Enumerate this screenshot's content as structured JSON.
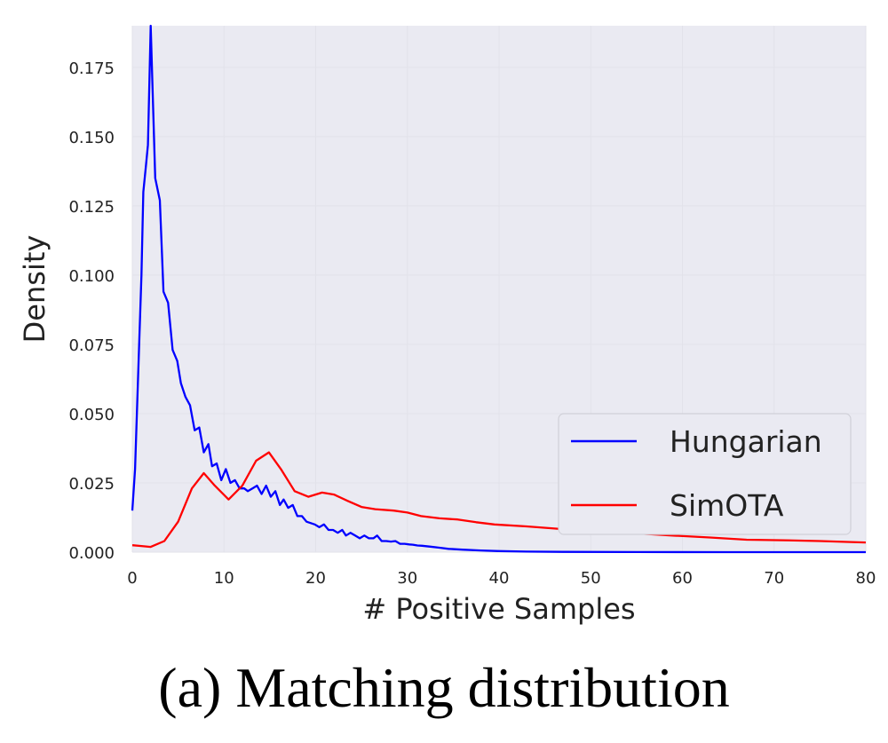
{
  "caption": "(a) Matching distribution",
  "chart_data": {
    "type": "line",
    "xlabel": "# Positive Samples",
    "ylabel": "Density",
    "xlim": [
      0,
      80
    ],
    "ylim": [
      0,
      0.19
    ],
    "xticks": [
      0,
      10,
      20,
      30,
      40,
      50,
      60,
      70,
      80
    ],
    "yticks": [
      0.0,
      0.025,
      0.05,
      0.075,
      0.1,
      0.125,
      0.15,
      0.175
    ],
    "ytick_labels": [
      "0.000",
      "0.025",
      "0.050",
      "0.075",
      "0.100",
      "0.125",
      "0.150",
      "0.175"
    ],
    "grid": true,
    "legend_position": "lower-right",
    "background": "#eaeaf2",
    "series": [
      {
        "name": "Hungarian",
        "color": "#0000ff",
        "points": [
          [
            0,
            0.015
          ],
          [
            0.3,
            0.03
          ],
          [
            0.7,
            0.07
          ],
          [
            1.0,
            0.1
          ],
          [
            1.2,
            0.13
          ],
          [
            1.5,
            0.14
          ],
          [
            1.7,
            0.147
          ],
          [
            2.0,
            0.19
          ],
          [
            2.5,
            0.135
          ],
          [
            3.0,
            0.127
          ],
          [
            3.4,
            0.094
          ],
          [
            3.9,
            0.09
          ],
          [
            4.4,
            0.073
          ],
          [
            4.9,
            0.069
          ],
          [
            5.3,
            0.061
          ],
          [
            5.8,
            0.056
          ],
          [
            6.3,
            0.053
          ],
          [
            6.8,
            0.044
          ],
          [
            7.3,
            0.045
          ],
          [
            7.8,
            0.036
          ],
          [
            8.3,
            0.039
          ],
          [
            8.7,
            0.031
          ],
          [
            9.2,
            0.032
          ],
          [
            9.7,
            0.026
          ],
          [
            10.2,
            0.03
          ],
          [
            10.7,
            0.025
          ],
          [
            11.2,
            0.026
          ],
          [
            11.7,
            0.023
          ],
          [
            12.2,
            0.023
          ],
          [
            12.6,
            0.022
          ],
          [
            13.1,
            0.023
          ],
          [
            13.6,
            0.024
          ],
          [
            14.1,
            0.021
          ],
          [
            14.6,
            0.024
          ],
          [
            15.1,
            0.02
          ],
          [
            15.6,
            0.022
          ],
          [
            16.1,
            0.017
          ],
          [
            16.5,
            0.019
          ],
          [
            17.0,
            0.016
          ],
          [
            17.5,
            0.017
          ],
          [
            18.0,
            0.013
          ],
          [
            18.5,
            0.013
          ],
          [
            19.0,
            0.011
          ],
          [
            19.9,
            0.01
          ],
          [
            20.4,
            0.009
          ],
          [
            20.9,
            0.01
          ],
          [
            21.4,
            0.008
          ],
          [
            21.9,
            0.008
          ],
          [
            22.4,
            0.007
          ],
          [
            22.9,
            0.008
          ],
          [
            23.3,
            0.006
          ],
          [
            23.8,
            0.007
          ],
          [
            24.3,
            0.006
          ],
          [
            24.8,
            0.005
          ],
          [
            25.3,
            0.006
          ],
          [
            25.8,
            0.005
          ],
          [
            26.3,
            0.005
          ],
          [
            26.7,
            0.006
          ],
          [
            27.2,
            0.004
          ],
          [
            27.7,
            0.004
          ],
          [
            28.2,
            0.0038
          ],
          [
            28.7,
            0.004
          ],
          [
            29.2,
            0.003
          ],
          [
            29.7,
            0.003
          ],
          [
            30.2,
            0.0028
          ],
          [
            30.6,
            0.0027
          ],
          [
            31.1,
            0.0024
          ],
          [
            31.6,
            0.0023
          ],
          [
            32.5,
            0.002
          ],
          [
            33.5,
            0.0016
          ],
          [
            34.5,
            0.0012
          ],
          [
            36.0,
            0.0009
          ],
          [
            38.0,
            0.0006
          ],
          [
            40.0,
            0.0004
          ],
          [
            43.0,
            0.0002
          ],
          [
            47.0,
            0.0001
          ],
          [
            55.0,
            3e-05
          ],
          [
            65.0,
            1e-05
          ],
          [
            80.0,
            0.0
          ]
        ]
      },
      {
        "name": "SimOTA",
        "color": "#ff0000",
        "points": [
          [
            0,
            0.0025
          ],
          [
            1.0,
            0.0022
          ],
          [
            2.0,
            0.0019
          ],
          [
            3.5,
            0.004
          ],
          [
            5.0,
            0.011
          ],
          [
            6.5,
            0.023
          ],
          [
            7.8,
            0.0285
          ],
          [
            9.0,
            0.024
          ],
          [
            10.5,
            0.019
          ],
          [
            12.0,
            0.024
          ],
          [
            13.5,
            0.033
          ],
          [
            14.9,
            0.036
          ],
          [
            16.2,
            0.03
          ],
          [
            17.7,
            0.022
          ],
          [
            19.2,
            0.02
          ],
          [
            20.7,
            0.0215
          ],
          [
            22.0,
            0.0208
          ],
          [
            23.5,
            0.0185
          ],
          [
            25.0,
            0.0163
          ],
          [
            26.5,
            0.0155
          ],
          [
            28.5,
            0.015
          ],
          [
            30.0,
            0.0143
          ],
          [
            31.5,
            0.013
          ],
          [
            33.5,
            0.0122
          ],
          [
            35.5,
            0.0118
          ],
          [
            37.5,
            0.0108
          ],
          [
            39.5,
            0.01
          ],
          [
            43.0,
            0.0093
          ],
          [
            47.0,
            0.0083
          ],
          [
            51.0,
            0.0073
          ],
          [
            55.0,
            0.0068
          ],
          [
            59.0,
            0.006
          ],
          [
            63.0,
            0.0053
          ],
          [
            67.0,
            0.0045
          ],
          [
            71.0,
            0.0043
          ],
          [
            75.0,
            0.004
          ],
          [
            78.0,
            0.0037
          ],
          [
            80.0,
            0.0035
          ]
        ]
      }
    ]
  }
}
